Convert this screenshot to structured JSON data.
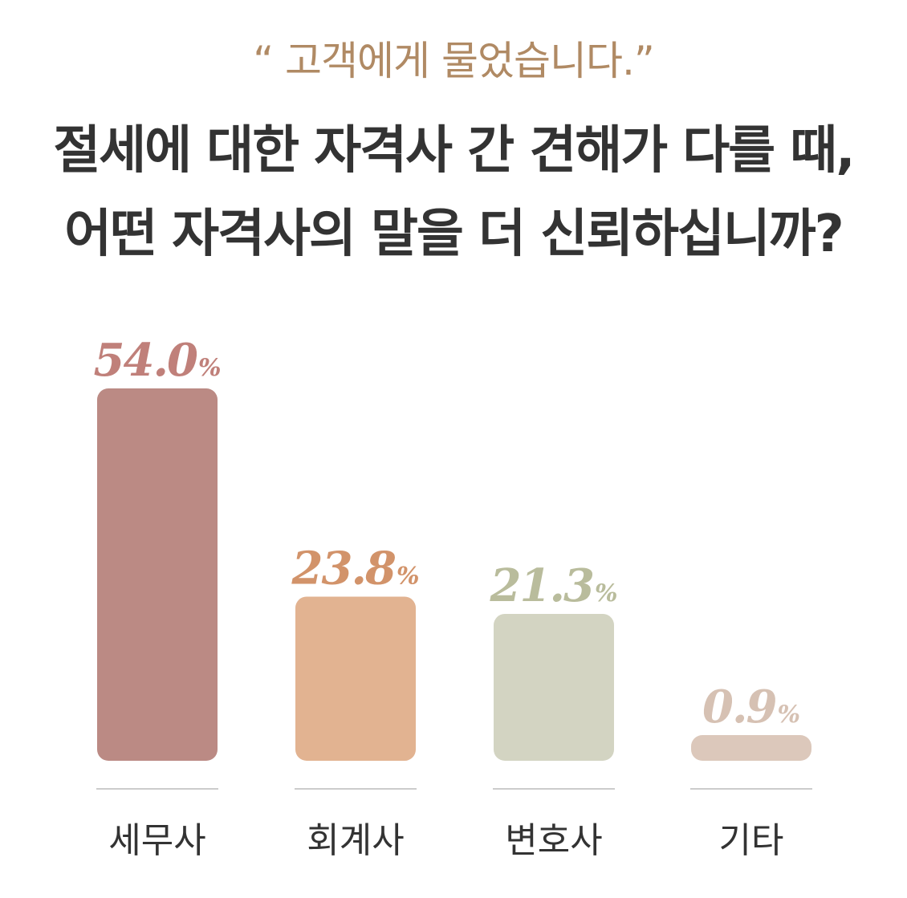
{
  "header": {
    "subtitle": "“ 고객에게 물었습니다.”",
    "title_line1": "절세에 대한 자격사 간 견해가 다를 때,",
    "title_line2": "어떤 자격사의 말을 더 신뢰하십니까?"
  },
  "chart_data": {
    "type": "bar",
    "title": "절세에 대한 자격사 간 견해가 다를 때, 어떤 자격사의 말을 더 신뢰하십니까?",
    "subtitle": "“ 고객에게 물었습니다.”",
    "categories": [
      "세무사",
      "회계사",
      "변호사",
      "기타"
    ],
    "values": [
      54.0,
      23.8,
      21.3,
      0.9
    ],
    "value_labels": [
      "54.0",
      "23.8",
      "21.3",
      "0.9"
    ],
    "unit": "%",
    "colors": [
      "#bb8a84",
      "#e2b391",
      "#d3d4c2",
      "#dcc8bb"
    ],
    "label_colors": [
      "#c0807a",
      "#d2936a",
      "#b9bc9c",
      "#d6c1b3"
    ],
    "xlabel": "",
    "ylabel": "",
    "ylim": [
      0,
      54.0
    ],
    "grid": false,
    "legend": "none"
  }
}
